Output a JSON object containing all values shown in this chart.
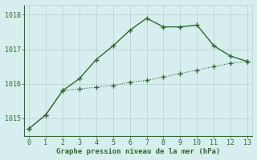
{
  "line1_x": [
    0,
    1,
    2,
    3,
    4,
    5,
    6,
    7,
    8,
    9,
    10,
    11,
    12,
    13
  ],
  "line1_y": [
    1014.7,
    1015.1,
    1015.8,
    1015.85,
    1015.9,
    1015.95,
    1016.05,
    1016.1,
    1016.2,
    1016.3,
    1016.4,
    1016.5,
    1016.6,
    1016.65
  ],
  "line2_x": [
    0,
    1,
    2,
    3,
    4,
    5,
    6,
    7,
    8,
    9,
    10,
    11,
    12,
    13
  ],
  "line2_y": [
    1014.7,
    1015.1,
    1015.8,
    1016.15,
    1016.7,
    1017.1,
    1017.55,
    1017.9,
    1017.65,
    1017.65,
    1017.7,
    1017.1,
    1016.8,
    1016.65
  ],
  "color": "#2d6a2d",
  "bg_color": "#d6eeee",
  "grid_color_major": "#c0d8d8",
  "grid_color_minor": "#dce8e8",
  "xlabel": "Graphe pression niveau de la mer (hPa)",
  "ylim": [
    1014.5,
    1018.3
  ],
  "xlim": [
    -0.3,
    13.3
  ],
  "yticks": [
    1015,
    1016,
    1017,
    1018
  ],
  "xticks": [
    0,
    1,
    2,
    3,
    4,
    5,
    6,
    7,
    8,
    9,
    10,
    11,
    12,
    13
  ]
}
